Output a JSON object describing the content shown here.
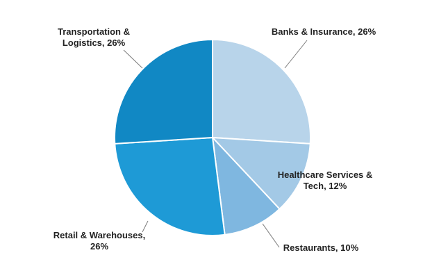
{
  "chart_data": {
    "type": "pie",
    "title": "",
    "slices": [
      {
        "label": "Banks & Insurance",
        "value": 26,
        "display": "Banks & Insurance, 26%",
        "color": "#b8d4ea"
      },
      {
        "label": "Healthcare Services & Tech",
        "value": 12,
        "display": "Healthcare Services & Tech, 12%",
        "color": "#a3c9e6"
      },
      {
        "label": "Restaurants",
        "value": 10,
        "display": "Restaurants, 10%",
        "color": "#7fb7e0"
      },
      {
        "label": "Retail & Warehouses",
        "value": 26,
        "display": "Retail & Warehouses, 26%",
        "color": "#1e9ad6"
      },
      {
        "label": "Transportation & Logistics",
        "value": 26,
        "display": "Transportation & Logistics, 26%",
        "color": "#1188c4"
      }
    ],
    "start_angle": "12 o'clock",
    "direction": "clockwise",
    "legend": "none"
  }
}
